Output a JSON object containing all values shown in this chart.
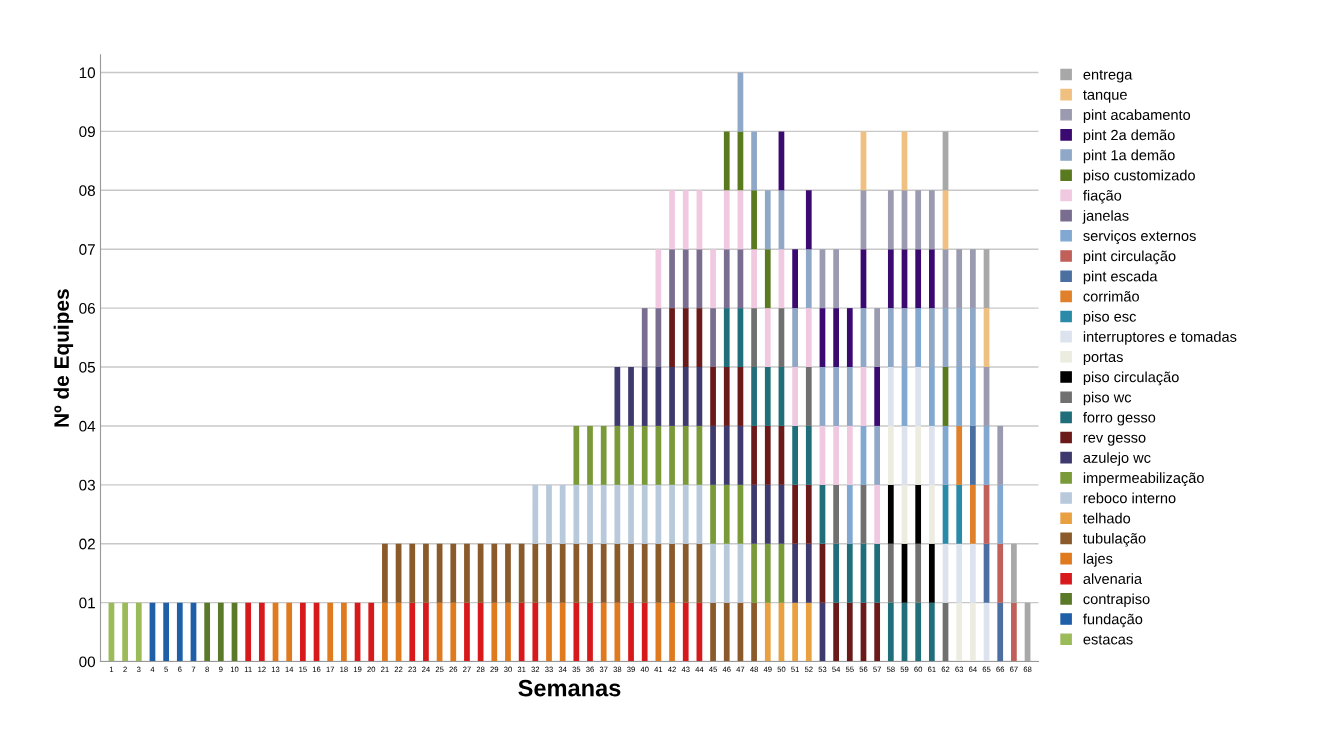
{
  "chart_data": {
    "type": "bar",
    "stacked": true,
    "xlabel": "Semanas",
    "ylabel": "Nº de Equipes",
    "categories": [
      "1",
      "2",
      "3",
      "4",
      "5",
      "6",
      "7",
      "8",
      "9",
      "10",
      "11",
      "12",
      "13",
      "14",
      "15",
      "16",
      "17",
      "18",
      "19",
      "20",
      "21",
      "22",
      "23",
      "24",
      "25",
      "26",
      "27",
      "28",
      "29",
      "30",
      "31",
      "32",
      "33",
      "34",
      "35",
      "36",
      "37",
      "38",
      "39",
      "40",
      "41",
      "42",
      "43",
      "44",
      "45",
      "46",
      "47",
      "48",
      "49",
      "50",
      "51",
      "52",
      "53",
      "54",
      "55",
      "56",
      "57",
      "58",
      "59",
      "60",
      "61",
      "62",
      "63",
      "64",
      "65",
      "66",
      "67",
      "68"
    ],
    "ylim": [
      0,
      10.3
    ],
    "yticks": [
      {
        "value": 0,
        "label": "00"
      },
      {
        "value": 1,
        "label": "01"
      },
      {
        "value": 2,
        "label": "02"
      },
      {
        "value": 3,
        "label": "03"
      },
      {
        "value": 4,
        "label": "04"
      },
      {
        "value": 5,
        "label": "05"
      },
      {
        "value": 6,
        "label": "06"
      },
      {
        "value": 7,
        "label": "07"
      },
      {
        "value": 8,
        "label": "08"
      },
      {
        "value": 9,
        "label": "09"
      },
      {
        "value": 10,
        "label": "10"
      }
    ],
    "grid": "y",
    "legend": "right",
    "series": [
      {
        "name": "estacas",
        "color": "#9bbb59",
        "values": [
          1,
          1,
          1,
          0,
          0,
          0,
          0,
          0,
          0,
          0,
          0,
          0,
          0,
          0,
          0,
          0,
          0,
          0,
          0,
          0,
          0,
          0,
          0,
          0,
          0,
          0,
          0,
          0,
          0,
          0,
          0,
          0,
          0,
          0,
          0,
          0,
          0,
          0,
          0,
          0,
          0,
          0,
          0,
          0,
          0,
          0,
          0,
          0,
          0,
          0,
          0,
          0,
          0,
          0,
          0,
          0,
          0,
          0,
          0,
          0,
          0,
          0,
          0,
          0,
          0,
          0,
          0,
          0
        ]
      },
      {
        "name": "fundação",
        "color": "#1f5fa8",
        "values": [
          0,
          0,
          0,
          1,
          1,
          1,
          1,
          0,
          0,
          0,
          0,
          0,
          0,
          0,
          0,
          0,
          0,
          0,
          0,
          0,
          0,
          0,
          0,
          0,
          0,
          0,
          0,
          0,
          0,
          0,
          0,
          0,
          0,
          0,
          0,
          0,
          0,
          0,
          0,
          0,
          0,
          0,
          0,
          0,
          0,
          0,
          0,
          0,
          0,
          0,
          0,
          0,
          0,
          0,
          0,
          0,
          0,
          0,
          0,
          0,
          0,
          0,
          0,
          0,
          0,
          0,
          0,
          0
        ]
      },
      {
        "name": "contrapiso",
        "color": "#5a7a2a",
        "values": [
          0,
          0,
          0,
          0,
          0,
          0,
          0,
          1,
          1,
          1,
          0,
          0,
          0,
          0,
          0,
          0,
          0,
          0,
          0,
          0,
          0,
          0,
          0,
          0,
          0,
          0,
          0,
          0,
          0,
          0,
          0,
          0,
          0,
          0,
          0,
          0,
          0,
          0,
          0,
          0,
          0,
          0,
          0,
          0,
          0,
          0,
          0,
          0,
          0,
          0,
          0,
          0,
          0,
          0,
          0,
          0,
          0,
          0,
          0,
          0,
          0,
          0,
          0,
          0,
          0,
          0,
          0,
          0
        ]
      },
      {
        "name": "alvenaria",
        "color": "#d7191c",
        "values": [
          0,
          0,
          0,
          0,
          0,
          0,
          0,
          0,
          0,
          0,
          1,
          1,
          0,
          0,
          1,
          1,
          0,
          0,
          1,
          1,
          0,
          0,
          1,
          1,
          0,
          0,
          1,
          1,
          0,
          0,
          1,
          1,
          0,
          0,
          1,
          1,
          0,
          0,
          1,
          1,
          0,
          0,
          1,
          1,
          0,
          0,
          0,
          0,
          0,
          0,
          0,
          0,
          0,
          0,
          0,
          0,
          0,
          0,
          0,
          0,
          0,
          0,
          0,
          0,
          0,
          0,
          0,
          0
        ]
      },
      {
        "name": "lajes",
        "color": "#e07a1f",
        "values": [
          0,
          0,
          0,
          0,
          0,
          0,
          0,
          0,
          0,
          0,
          0,
          0,
          1,
          1,
          0,
          0,
          1,
          1,
          0,
          0,
          1,
          1,
          0,
          0,
          1,
          1,
          0,
          0,
          1,
          1,
          0,
          0,
          1,
          1,
          0,
          0,
          1,
          1,
          0,
          0,
          1,
          1,
          0,
          0,
          0,
          0,
          0,
          0,
          0,
          0,
          0,
          0,
          0,
          0,
          0,
          0,
          0,
          0,
          0,
          0,
          0,
          0,
          0,
          0,
          0,
          0,
          0,
          0
        ]
      },
      {
        "name": "tubulação",
        "color": "#8b5a2b",
        "values": [
          0,
          0,
          0,
          0,
          0,
          0,
          0,
          0,
          0,
          0,
          0,
          0,
          0,
          0,
          0,
          0,
          0,
          0,
          0,
          0,
          1,
          1,
          1,
          1,
          1,
          1,
          1,
          1,
          1,
          1,
          1,
          1,
          1,
          1,
          1,
          1,
          1,
          1,
          1,
          1,
          1,
          1,
          1,
          1,
          1,
          1,
          1,
          1,
          0,
          0,
          0,
          0,
          0,
          0,
          0,
          0,
          0,
          0,
          0,
          0,
          0,
          0,
          0,
          0,
          0,
          0,
          0,
          0
        ]
      },
      {
        "name": "telhado",
        "color": "#e8a040",
        "values": [
          0,
          0,
          0,
          0,
          0,
          0,
          0,
          0,
          0,
          0,
          0,
          0,
          0,
          0,
          0,
          0,
          0,
          0,
          0,
          0,
          0,
          0,
          0,
          0,
          0,
          0,
          0,
          0,
          0,
          0,
          0,
          0,
          0,
          0,
          0,
          0,
          0,
          0,
          0,
          0,
          0,
          0,
          0,
          0,
          0,
          0,
          0,
          0,
          1,
          1,
          1,
          1,
          0,
          0,
          0,
          0,
          0,
          0,
          0,
          0,
          0,
          0,
          0,
          0,
          0,
          0,
          0,
          0
        ]
      },
      {
        "name": "reboco interno",
        "color": "#b8c9dc",
        "values": [
          0,
          0,
          0,
          0,
          0,
          0,
          0,
          0,
          0,
          0,
          0,
          0,
          0,
          0,
          0,
          0,
          0,
          0,
          0,
          0,
          0,
          0,
          0,
          0,
          0,
          0,
          0,
          0,
          0,
          0,
          0,
          1,
          1,
          1,
          1,
          1,
          1,
          1,
          1,
          1,
          1,
          1,
          1,
          1,
          1,
          1,
          1,
          0,
          0,
          0,
          0,
          0,
          0,
          0,
          0,
          0,
          0,
          0,
          0,
          0,
          0,
          0,
          0,
          0,
          0,
          0,
          0,
          0
        ]
      },
      {
        "name": "impermeabilização",
        "color": "#7a9a3a",
        "values": [
          0,
          0,
          0,
          0,
          0,
          0,
          0,
          0,
          0,
          0,
          0,
          0,
          0,
          0,
          0,
          0,
          0,
          0,
          0,
          0,
          0,
          0,
          0,
          0,
          0,
          0,
          0,
          0,
          0,
          0,
          0,
          0,
          0,
          0,
          1,
          1,
          1,
          1,
          1,
          1,
          1,
          1,
          1,
          1,
          1,
          1,
          1,
          1,
          1,
          1,
          0,
          0,
          0,
          0,
          0,
          0,
          0,
          0,
          0,
          0,
          0,
          0,
          0,
          0,
          0,
          0,
          0,
          0
        ]
      },
      {
        "name": "azulejo wc",
        "color": "#3f3a6e",
        "values": [
          0,
          0,
          0,
          0,
          0,
          0,
          0,
          0,
          0,
          0,
          0,
          0,
          0,
          0,
          0,
          0,
          0,
          0,
          0,
          0,
          0,
          0,
          0,
          0,
          0,
          0,
          0,
          0,
          0,
          0,
          0,
          0,
          0,
          0,
          0,
          0,
          0,
          1,
          1,
          1,
          1,
          1,
          1,
          1,
          1,
          1,
          1,
          1,
          1,
          1,
          1,
          1,
          1,
          0,
          0,
          0,
          0,
          0,
          0,
          0,
          0,
          0,
          0,
          0,
          0,
          0,
          0,
          0
        ]
      },
      {
        "name": "rev gesso",
        "color": "#6b1a1a",
        "values": [
          0,
          0,
          0,
          0,
          0,
          0,
          0,
          0,
          0,
          0,
          0,
          0,
          0,
          0,
          0,
          0,
          0,
          0,
          0,
          0,
          0,
          0,
          0,
          0,
          0,
          0,
          0,
          0,
          0,
          0,
          0,
          0,
          0,
          0,
          0,
          0,
          0,
          0,
          0,
          0,
          0,
          1,
          1,
          1,
          1,
          1,
          1,
          1,
          1,
          1,
          1,
          1,
          1,
          1,
          1,
          1,
          1,
          0,
          0,
          0,
          0,
          0,
          0,
          0,
          0,
          0,
          0,
          0
        ]
      },
      {
        "name": "forro gesso",
        "color": "#1f6e7a",
        "values": [
          0,
          0,
          0,
          0,
          0,
          0,
          0,
          0,
          0,
          0,
          0,
          0,
          0,
          0,
          0,
          0,
          0,
          0,
          0,
          0,
          0,
          0,
          0,
          0,
          0,
          0,
          0,
          0,
          0,
          0,
          0,
          0,
          0,
          0,
          0,
          0,
          0,
          0,
          0,
          0,
          0,
          0,
          0,
          0,
          0,
          1,
          1,
          1,
          1,
          1,
          1,
          1,
          1,
          1,
          1,
          1,
          1,
          1,
          1,
          1,
          1,
          0,
          0,
          0,
          0,
          0,
          0,
          0
        ]
      },
      {
        "name": "piso wc",
        "color": "#707070",
        "values": [
          0,
          0,
          0,
          0,
          0,
          0,
          0,
          0,
          0,
          0,
          0,
          0,
          0,
          0,
          0,
          0,
          0,
          0,
          0,
          0,
          0,
          0,
          0,
          0,
          0,
          0,
          0,
          0,
          0,
          0,
          0,
          0,
          0,
          0,
          0,
          0,
          0,
          0,
          0,
          0,
          0,
          0,
          0,
          0,
          0,
          0,
          0,
          1,
          0,
          1,
          0,
          1,
          0,
          1,
          0,
          1,
          0,
          1,
          0,
          1,
          0,
          1,
          0,
          0,
          0,
          0,
          0,
          0
        ]
      },
      {
        "name": "piso circulação",
        "color": "#000000",
        "values": [
          0,
          0,
          0,
          0,
          0,
          0,
          0,
          0,
          0,
          0,
          0,
          0,
          0,
          0,
          0,
          0,
          0,
          0,
          0,
          0,
          0,
          0,
          0,
          0,
          0,
          0,
          0,
          0,
          0,
          0,
          0,
          0,
          0,
          0,
          0,
          0,
          0,
          0,
          0,
          0,
          0,
          0,
          0,
          0,
          0,
          0,
          0,
          0,
          0,
          0,
          0,
          0,
          0,
          0,
          0,
          0,
          0,
          1,
          1,
          1,
          1,
          0,
          0,
          0,
          0,
          0,
          0,
          0
        ]
      },
      {
        "name": "portas",
        "color": "#ecece0",
        "values": [
          0,
          0,
          0,
          0,
          0,
          0,
          0,
          0,
          0,
          0,
          0,
          0,
          0,
          0,
          0,
          0,
          0,
          0,
          0,
          0,
          0,
          0,
          0,
          0,
          0,
          0,
          0,
          0,
          0,
          0,
          0,
          0,
          0,
          0,
          0,
          0,
          0,
          0,
          0,
          0,
          0,
          0,
          0,
          0,
          0,
          0,
          0,
          0,
          0,
          0,
          0,
          0,
          0,
          0,
          0,
          0,
          0,
          1,
          1,
          1,
          1,
          0,
          1,
          1,
          0,
          0,
          0,
          0
        ]
      },
      {
        "name": "interruptores e tomadas",
        "color": "#dde3ee",
        "values": [
          0,
          0,
          0,
          0,
          0,
          0,
          0,
          0,
          0,
          0,
          0,
          0,
          0,
          0,
          0,
          0,
          0,
          0,
          0,
          0,
          0,
          0,
          0,
          0,
          0,
          0,
          0,
          0,
          0,
          0,
          0,
          0,
          0,
          0,
          0,
          0,
          0,
          0,
          0,
          0,
          0,
          0,
          0,
          0,
          0,
          0,
          0,
          0,
          0,
          0,
          0,
          0,
          0,
          0,
          0,
          0,
          0,
          1,
          1,
          1,
          1,
          1,
          1,
          1,
          1,
          0,
          0,
          0
        ]
      },
      {
        "name": "piso esc",
        "color": "#2a8aa8",
        "values": [
          0,
          0,
          0,
          0,
          0,
          0,
          0,
          0,
          0,
          0,
          0,
          0,
          0,
          0,
          0,
          0,
          0,
          0,
          0,
          0,
          0,
          0,
          0,
          0,
          0,
          0,
          0,
          0,
          0,
          0,
          0,
          0,
          0,
          0,
          0,
          0,
          0,
          0,
          0,
          0,
          0,
          0,
          0,
          0,
          0,
          0,
          0,
          0,
          0,
          0,
          0,
          0,
          0,
          0,
          0,
          0,
          0,
          0,
          0,
          0,
          0,
          1,
          1,
          0,
          0,
          0,
          0,
          0
        ]
      },
      {
        "name": "corrimão",
        "color": "#e0802a",
        "values": [
          0,
          0,
          0,
          0,
          0,
          0,
          0,
          0,
          0,
          0,
          0,
          0,
          0,
          0,
          0,
          0,
          0,
          0,
          0,
          0,
          0,
          0,
          0,
          0,
          0,
          0,
          0,
          0,
          0,
          0,
          0,
          0,
          0,
          0,
          0,
          0,
          0,
          0,
          0,
          0,
          0,
          0,
          0,
          0,
          0,
          0,
          0,
          0,
          0,
          0,
          0,
          0,
          0,
          0,
          0,
          0,
          0,
          0,
          0,
          0,
          0,
          0,
          1,
          1,
          0,
          0,
          0,
          0
        ]
      },
      {
        "name": "pint escada",
        "color": "#4a6fa0",
        "values": [
          0,
          0,
          0,
          0,
          0,
          0,
          0,
          0,
          0,
          0,
          0,
          0,
          0,
          0,
          0,
          0,
          0,
          0,
          0,
          0,
          0,
          0,
          0,
          0,
          0,
          0,
          0,
          0,
          0,
          0,
          0,
          0,
          0,
          0,
          0,
          0,
          0,
          0,
          0,
          0,
          0,
          0,
          0,
          0,
          0,
          0,
          0,
          0,
          0,
          0,
          0,
          0,
          0,
          0,
          0,
          0,
          0,
          0,
          0,
          0,
          0,
          0,
          0,
          1,
          1,
          1,
          0,
          0
        ]
      },
      {
        "name": "pint circulação",
        "color": "#c0605a",
        "values": [
          0,
          0,
          0,
          0,
          0,
          0,
          0,
          0,
          0,
          0,
          0,
          0,
          0,
          0,
          0,
          0,
          0,
          0,
          0,
          0,
          0,
          0,
          0,
          0,
          0,
          0,
          0,
          0,
          0,
          0,
          0,
          0,
          0,
          0,
          0,
          0,
          0,
          0,
          0,
          0,
          0,
          0,
          0,
          0,
          0,
          0,
          0,
          0,
          0,
          0,
          0,
          0,
          0,
          0,
          0,
          0,
          0,
          0,
          0,
          0,
          0,
          0,
          0,
          0,
          1,
          1,
          1,
          0
        ]
      },
      {
        "name": "serviços externos",
        "color": "#80a8d0",
        "values": [
          0,
          0,
          0,
          0,
          0,
          0,
          0,
          0,
          0,
          0,
          0,
          0,
          0,
          0,
          0,
          0,
          0,
          0,
          0,
          0,
          0,
          0,
          0,
          0,
          0,
          0,
          0,
          0,
          0,
          0,
          0,
          0,
          0,
          0,
          0,
          0,
          0,
          0,
          0,
          0,
          0,
          0,
          0,
          0,
          0,
          0,
          0,
          0,
          0,
          0,
          0,
          0,
          0,
          0,
          1,
          1,
          0,
          0,
          1,
          1,
          1,
          1,
          1,
          1,
          1,
          1,
          0,
          0
        ]
      },
      {
        "name": "janelas",
        "color": "#7a6e90",
        "values": [
          0,
          0,
          0,
          0,
          0,
          0,
          0,
          0,
          0,
          0,
          0,
          0,
          0,
          0,
          0,
          0,
          0,
          0,
          0,
          0,
          0,
          0,
          0,
          0,
          0,
          0,
          0,
          0,
          0,
          0,
          0,
          0,
          0,
          0,
          0,
          0,
          0,
          0,
          0,
          1,
          1,
          1,
          1,
          1,
          1,
          1,
          1,
          0,
          0,
          0,
          0,
          0,
          0,
          0,
          0,
          0,
          0,
          0,
          0,
          0,
          0,
          0,
          0,
          0,
          0,
          0,
          0,
          0
        ]
      },
      {
        "name": "fiação",
        "color": "#f0c8e0",
        "values": [
          0,
          0,
          0,
          0,
          0,
          0,
          0,
          0,
          0,
          0,
          0,
          0,
          0,
          0,
          0,
          0,
          0,
          0,
          0,
          0,
          0,
          0,
          0,
          0,
          0,
          0,
          0,
          0,
          0,
          0,
          0,
          0,
          0,
          0,
          0,
          0,
          0,
          0,
          0,
          0,
          1,
          1,
          1,
          1,
          1,
          1,
          1,
          1,
          1,
          1,
          1,
          1,
          1,
          1,
          1,
          1,
          1,
          0,
          0,
          0,
          0,
          0,
          0,
          0,
          0,
          0,
          0,
          0
        ]
      },
      {
        "name": "piso customizado",
        "color": "#5a7a20",
        "values": [
          0,
          0,
          0,
          0,
          0,
          0,
          0,
          0,
          0,
          0,
          0,
          0,
          0,
          0,
          0,
          0,
          0,
          0,
          0,
          0,
          0,
          0,
          0,
          0,
          0,
          0,
          0,
          0,
          0,
          0,
          0,
          0,
          0,
          0,
          0,
          0,
          0,
          0,
          0,
          0,
          0,
          0,
          0,
          0,
          0,
          1,
          1,
          1,
          1,
          0,
          0,
          0,
          0,
          0,
          0,
          0,
          0,
          0,
          0,
          0,
          0,
          1,
          0,
          0,
          0,
          0,
          0,
          0
        ]
      },
      {
        "name": "pint 1a demão",
        "color": "#90a8c8",
        "values": [
          0,
          0,
          0,
          0,
          0,
          0,
          0,
          0,
          0,
          0,
          0,
          0,
          0,
          0,
          0,
          0,
          0,
          0,
          0,
          0,
          0,
          0,
          0,
          0,
          0,
          0,
          0,
          0,
          0,
          0,
          0,
          0,
          0,
          0,
          0,
          0,
          0,
          0,
          0,
          0,
          0,
          0,
          0,
          0,
          0,
          0,
          1,
          1,
          1,
          1,
          1,
          1,
          1,
          1,
          1,
          1,
          1,
          1,
          1,
          0,
          1,
          1,
          1,
          1,
          0,
          0,
          0,
          0
        ]
      },
      {
        "name": "pint 2a demão",
        "color": "#3a0a70",
        "values": [
          0,
          0,
          0,
          0,
          0,
          0,
          0,
          0,
          0,
          0,
          0,
          0,
          0,
          0,
          0,
          0,
          0,
          0,
          0,
          0,
          0,
          0,
          0,
          0,
          0,
          0,
          0,
          0,
          0,
          0,
          0,
          0,
          0,
          0,
          0,
          0,
          0,
          0,
          0,
          0,
          0,
          0,
          0,
          0,
          0,
          0,
          0,
          0,
          0,
          1,
          1,
          1,
          1,
          1,
          1,
          1,
          1,
          1,
          1,
          1,
          1,
          0,
          0,
          0,
          0,
          0,
          0,
          0
        ]
      },
      {
        "name": "pint acabamento",
        "color": "#9a9ab0",
        "values": [
          0,
          0,
          0,
          0,
          0,
          0,
          0,
          0,
          0,
          0,
          0,
          0,
          0,
          0,
          0,
          0,
          0,
          0,
          0,
          0,
          0,
          0,
          0,
          0,
          0,
          0,
          0,
          0,
          0,
          0,
          0,
          0,
          0,
          0,
          0,
          0,
          0,
          0,
          0,
          0,
          0,
          0,
          0,
          0,
          0,
          0,
          0,
          0,
          0,
          0,
          0,
          0,
          1,
          1,
          0,
          1,
          1,
          1,
          1,
          1,
          1,
          1,
          1,
          1,
          1,
          1,
          0,
          0
        ]
      },
      {
        "name": "tanque",
        "color": "#f0c080",
        "values": [
          0,
          0,
          0,
          0,
          0,
          0,
          0,
          0,
          0,
          0,
          0,
          0,
          0,
          0,
          0,
          0,
          0,
          0,
          0,
          0,
          0,
          0,
          0,
          0,
          0,
          0,
          0,
          0,
          0,
          0,
          0,
          0,
          0,
          0,
          0,
          0,
          0,
          0,
          0,
          0,
          0,
          0,
          0,
          0,
          0,
          0,
          0,
          0,
          0,
          0,
          0,
          0,
          0,
          0,
          0,
          1,
          0,
          0,
          1,
          0,
          0,
          1,
          0,
          0,
          1,
          0,
          0,
          0
        ]
      },
      {
        "name": "entrega",
        "color": "#a8a8a8",
        "values": [
          0,
          0,
          0,
          0,
          0,
          0,
          0,
          0,
          0,
          0,
          0,
          0,
          0,
          0,
          0,
          0,
          0,
          0,
          0,
          0,
          0,
          0,
          0,
          0,
          0,
          0,
          0,
          0,
          0,
          0,
          0,
          0,
          0,
          0,
          0,
          0,
          0,
          0,
          0,
          0,
          0,
          0,
          0,
          0,
          0,
          0,
          0,
          0,
          0,
          0,
          0,
          0,
          0,
          0,
          0,
          0,
          0,
          0,
          0,
          0,
          0,
          1,
          0,
          0,
          1,
          0,
          1,
          1
        ]
      }
    ]
  }
}
